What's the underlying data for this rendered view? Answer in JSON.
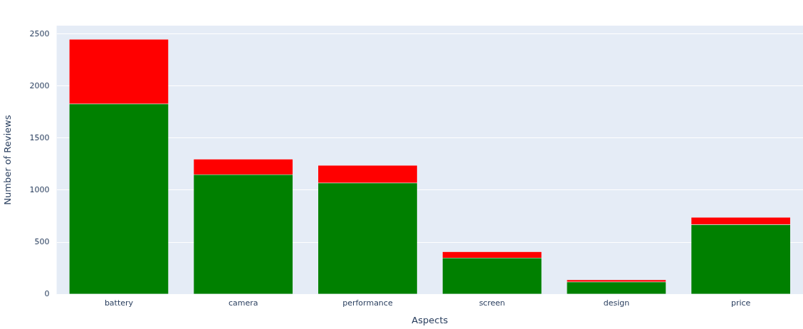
{
  "chart_data": {
    "type": "bar",
    "stacked": true,
    "xlabel": "Aspects",
    "ylabel": "Number of Reviews",
    "categories": [
      "battery",
      "camera",
      "performance",
      "screen",
      "design",
      "price"
    ],
    "series": [
      {
        "color": "#008000",
        "values": [
          1830,
          1150,
          1070,
          350,
          120,
          670
        ]
      },
      {
        "color": "#ff0000",
        "values": [
          620,
          150,
          170,
          60,
          20,
          70
        ]
      }
    ],
    "ylim": [
      0,
      2580
    ],
    "yticks": [
      0,
      500,
      1000,
      1500,
      2000,
      2500
    ],
    "grid": "y",
    "legend": false
  }
}
